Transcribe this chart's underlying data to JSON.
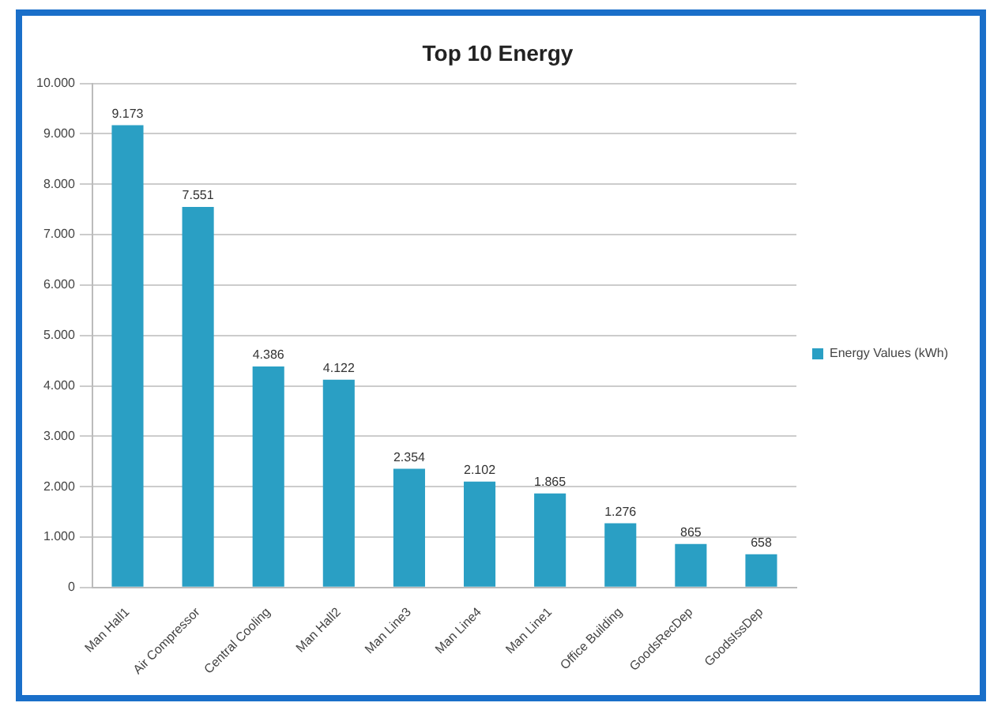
{
  "chart_data": {
    "type": "bar",
    "title": "Top 10 Energy",
    "categories": [
      "Man Hall1",
      "Air Compressor",
      "Central Cooling",
      "Man Hall2",
      "Man Line3",
      "Man Line4",
      "Man Line1",
      "Office Building",
      "GoodsRecDep",
      "GoodsIssDep"
    ],
    "series": [
      {
        "name": "Energy Values (kWh)",
        "color": "#2a9fc4",
        "values": [
          9173,
          7551,
          4386,
          4122,
          2354,
          2102,
          1865,
          1276,
          865,
          658
        ],
        "value_labels": [
          "9.173",
          "7.551",
          "4.386",
          "4.122",
          "2.354",
          "2.102",
          "1.865",
          "1.276",
          "865",
          "658"
        ]
      }
    ],
    "ylim": [
      0,
      10000
    ],
    "yticks": [
      0,
      {
        "value": 1000,
        "label": "1.000"
      },
      {
        "value": 2000,
        "label": "2.000"
      },
      {
        "value": 3000,
        "label": "3.000"
      },
      {
        "value": 4000,
        "label": "4.000"
      },
      {
        "value": 5000,
        "label": "5.000"
      },
      {
        "value": 6000,
        "label": "6.000"
      },
      {
        "value": 7000,
        "label": "7.000"
      },
      {
        "value": 8000,
        "label": "8.000"
      },
      {
        "value": 9000,
        "label": "9.000"
      },
      {
        "value": 10000,
        "label": "10.000"
      }
    ],
    "grid": "y",
    "legend": "right"
  }
}
